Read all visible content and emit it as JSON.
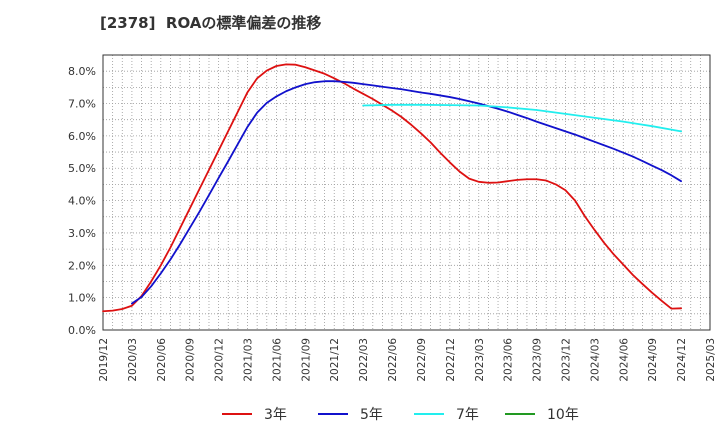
{
  "chart_data": {
    "type": "line",
    "title": "[2378]  ROAの標準偏差の推移",
    "xlabel": "",
    "ylabel": "",
    "ylim": [
      0,
      8.5
    ],
    "yticks": [
      0,
      1,
      2,
      3,
      4,
      5,
      6,
      7,
      8
    ],
    "ytick_labels": [
      "0.0%",
      "1.0%",
      "2.0%",
      "3.0%",
      "4.0%",
      "5.0%",
      "6.0%",
      "7.0%",
      "8.0%"
    ],
    "x_tick_labels": [
      "2019/12",
      "2020/03",
      "2020/06",
      "2020/09",
      "2020/12",
      "2021/03",
      "2021/06",
      "2021/09",
      "2021/12",
      "2022/03",
      "2022/06",
      "2022/09",
      "2022/12",
      "2023/03",
      "2023/06",
      "2023/09",
      "2023/12",
      "2024/03",
      "2024/06",
      "2024/09",
      "2024/12",
      "2025/03"
    ],
    "grid": true,
    "legend_position": "bottom",
    "series": [
      {
        "name": "3年",
        "color": "#dd1111",
        "x": [
          "2019/12",
          "2020/01",
          "2020/02",
          "2020/03",
          "2020/04",
          "2020/05",
          "2020/06",
          "2020/07",
          "2020/08",
          "2020/09",
          "2020/10",
          "2020/11",
          "2020/12",
          "2021/01",
          "2021/02",
          "2021/03",
          "2021/04",
          "2021/05",
          "2021/06",
          "2021/07",
          "2021/08",
          "2021/09",
          "2021/10",
          "2021/11",
          "2021/12",
          "2022/01",
          "2022/02",
          "2022/03",
          "2022/04",
          "2022/05",
          "2022/06",
          "2022/07",
          "2022/08",
          "2022/09",
          "2022/10",
          "2022/11",
          "2022/12",
          "2023/01",
          "2023/02",
          "2023/03",
          "2023/04",
          "2023/05",
          "2023/06",
          "2023/07",
          "2023/08",
          "2023/09",
          "2023/10",
          "2023/11",
          "2023/12",
          "2024/01",
          "2024/02",
          "2024/03",
          "2024/04",
          "2024/05",
          "2024/06",
          "2024/07",
          "2024/08",
          "2024/09",
          "2024/10",
          "2024/11",
          "2024/12"
        ],
        "values": [
          0.58,
          0.6,
          0.65,
          0.75,
          1.05,
          1.5,
          2.0,
          2.55,
          3.15,
          3.75,
          4.35,
          4.95,
          5.55,
          6.15,
          6.75,
          7.35,
          7.78,
          8.02,
          8.16,
          8.21,
          8.2,
          8.12,
          8.02,
          7.92,
          7.78,
          7.63,
          7.46,
          7.3,
          7.14,
          6.96,
          6.78,
          6.58,
          6.34,
          6.08,
          5.8,
          5.48,
          5.18,
          4.9,
          4.68,
          4.58,
          4.55,
          4.56,
          4.6,
          4.64,
          4.66,
          4.66,
          4.62,
          4.5,
          4.32,
          4.0,
          3.52,
          3.1,
          2.7,
          2.34,
          2.02,
          1.7,
          1.42,
          1.15,
          0.9,
          0.66,
          0.67
        ]
      },
      {
        "name": "5年",
        "color": "#1111cc",
        "x": [
          "2020/03",
          "2020/04",
          "2020/05",
          "2020/06",
          "2020/07",
          "2020/08",
          "2020/09",
          "2020/10",
          "2020/11",
          "2020/12",
          "2021/01",
          "2021/02",
          "2021/03",
          "2021/04",
          "2021/05",
          "2021/06",
          "2021/07",
          "2021/08",
          "2021/09",
          "2021/10",
          "2021/11",
          "2021/12",
          "2022/01",
          "2022/02",
          "2022/03",
          "2022/04",
          "2022/05",
          "2022/06",
          "2022/07",
          "2022/08",
          "2022/09",
          "2022/10",
          "2022/11",
          "2022/12",
          "2023/01",
          "2023/02",
          "2023/03",
          "2023/04",
          "2023/05",
          "2023/06",
          "2023/07",
          "2023/08",
          "2023/09",
          "2023/10",
          "2023/11",
          "2023/12",
          "2024/01",
          "2024/02",
          "2024/03",
          "2024/04",
          "2024/05",
          "2024/06",
          "2024/07",
          "2024/08",
          "2024/09",
          "2024/10",
          "2024/11",
          "2024/12"
        ],
        "values": [
          0.82,
          1.02,
          1.35,
          1.75,
          2.18,
          2.65,
          3.15,
          3.65,
          4.17,
          4.7,
          5.22,
          5.75,
          6.28,
          6.72,
          7.02,
          7.22,
          7.38,
          7.5,
          7.6,
          7.66,
          7.69,
          7.69,
          7.67,
          7.64,
          7.6,
          7.56,
          7.52,
          7.48,
          7.44,
          7.39,
          7.34,
          7.3,
          7.25,
          7.2,
          7.14,
          7.07,
          7.0,
          6.92,
          6.84,
          6.75,
          6.65,
          6.55,
          6.44,
          6.34,
          6.24,
          6.14,
          6.04,
          5.93,
          5.82,
          5.71,
          5.6,
          5.48,
          5.36,
          5.22,
          5.08,
          4.94,
          4.78,
          4.6
        ]
      },
      {
        "name": "7年",
        "color": "#22eeee",
        "x": [
          "2022/03",
          "2022/06",
          "2022/09",
          "2022/12",
          "2023/03",
          "2023/06",
          "2023/09",
          "2023/12",
          "2024/03",
          "2024/06",
          "2024/09",
          "2024/12"
        ],
        "values": [
          6.94,
          6.96,
          6.96,
          6.95,
          6.94,
          6.88,
          6.8,
          6.68,
          6.56,
          6.44,
          6.3,
          6.14
        ]
      },
      {
        "name": "10年",
        "color": "#229922",
        "x": [],
        "values": []
      }
    ]
  }
}
